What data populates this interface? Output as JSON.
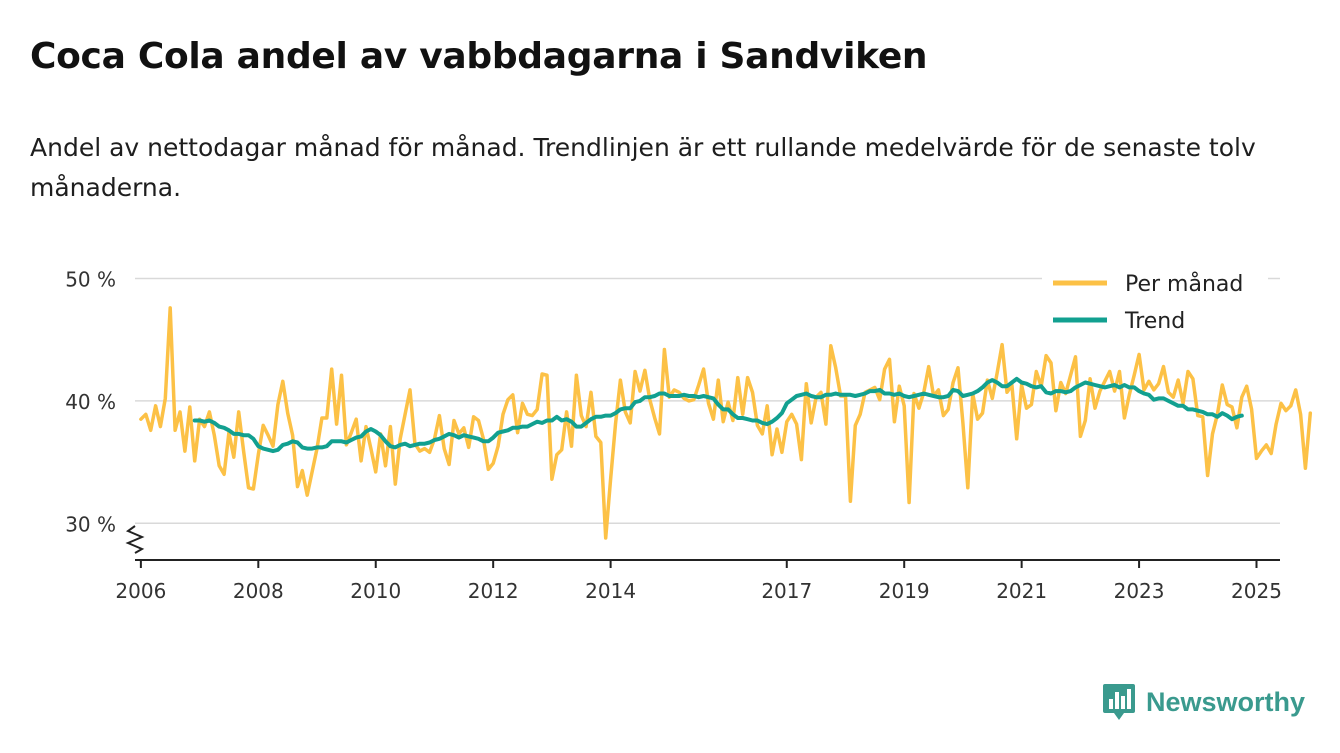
{
  "header": {
    "title": "Coca Cola andel av vabbdagarna i Sandviken"
  },
  "brand": {
    "name": "Newsworthy"
  },
  "colors": {
    "monthly": "#fcc146",
    "trend": "#12a090",
    "grid": "#d9d9d9",
    "axis": "#222222",
    "text": "#333333"
  },
  "chart_data": {
    "type": "line",
    "title": "Coca Cola andel av vabbdagarna i Sandviken",
    "subtitle": "Andel av nettodagar månad för månad. Trendlinjen är ett rullande medelvärde för de senaste tolv månaderna.",
    "xlabel": "",
    "ylabel": "",
    "x_range": [
      2005.9,
      2025.4
    ],
    "ylim": [
      27,
      52
    ],
    "y_ticks": [
      30,
      40,
      50
    ],
    "y_tick_labels": [
      "30 %",
      "40 %",
      "50 %"
    ],
    "x_ticks": [
      2006,
      2008,
      2010,
      2012,
      2014,
      2017,
      2019,
      2021,
      2023,
      2025
    ],
    "x_tick_labels": [
      "2006",
      "2008",
      "2010",
      "2012",
      "2014",
      "2017",
      "2019",
      "2021",
      "2023",
      "2025"
    ],
    "legend": {
      "position": "top-right",
      "entries": [
        "Per månad",
        "Trend"
      ]
    },
    "series": [
      {
        "name": "Per månad",
        "start": [
          2006,
          1
        ],
        "values": [
          38.5,
          38.9,
          37.6,
          39.6,
          37.9,
          40.2,
          47.6,
          37.6,
          39.1,
          35.9,
          39.5,
          35.1,
          38.5,
          37.9,
          39.1,
          37.2,
          34.7,
          34.0,
          37.4,
          35.4,
          39.1,
          35.9,
          32.9,
          32.8,
          35.6,
          38.0,
          37.2,
          36.3,
          39.7,
          41.6,
          39.0,
          37.2,
          33.0,
          34.3,
          32.3,
          34.2,
          36.1,
          38.6,
          38.6,
          42.6,
          38.1,
          42.1,
          36.4,
          37.4,
          38.5,
          35.1,
          37.9,
          36.1,
          34.2,
          37.3,
          34.7,
          37.9,
          33.2,
          36.9,
          38.9,
          40.9,
          36.5,
          35.9,
          36.1,
          35.8,
          36.9,
          38.8,
          36.1,
          34.8,
          38.4,
          37.3,
          37.8,
          36.2,
          38.7,
          38.4,
          36.9,
          34.4,
          34.9,
          36.3,
          38.9,
          40.1,
          40.5,
          37.4,
          39.8,
          38.9,
          38.8,
          39.3,
          42.2,
          42.1,
          33.6,
          35.6,
          36.0,
          39.1,
          36.3,
          42.1,
          38.8,
          37.9,
          40.7,
          37.1,
          36.6,
          28.8,
          33.6,
          38.1,
          41.7,
          39.1,
          38.2,
          42.4,
          40.8,
          42.5,
          40.1,
          38.6,
          37.3,
          44.2,
          40.3,
          40.9,
          40.7,
          40.2,
          40.0,
          40.1,
          41.3,
          42.6,
          39.8,
          38.5,
          41.7,
          38.3,
          39.9,
          38.4,
          41.9,
          38.9,
          41.9,
          40.7,
          38.0,
          37.3,
          39.6,
          35.6,
          37.7,
          35.8,
          38.3,
          38.9,
          38.1,
          35.2,
          41.4,
          38.2,
          40.3,
          40.7,
          38.1,
          44.5,
          42.7,
          40.4,
          40.4,
          31.8,
          38.0,
          38.9,
          40.7,
          40.9,
          41.1,
          40.1,
          42.6,
          43.4,
          38.3,
          41.2,
          39.6,
          31.7,
          40.6,
          39.4,
          40.7,
          42.8,
          40.4,
          40.9,
          38.8,
          39.3,
          41.5,
          42.7,
          38.2,
          32.9,
          40.6,
          38.5,
          39.0,
          41.7,
          40.2,
          42.3,
          44.6,
          40.7,
          41.3,
          36.9,
          41.3,
          39.4,
          39.7,
          42.4,
          41.2,
          43.7,
          43.1,
          39.2,
          41.5,
          40.6,
          42.1,
          43.6,
          37.1,
          38.4,
          41.8,
          39.4,
          40.8,
          41.6,
          42.4,
          40.8,
          42.4,
          38.6,
          40.5,
          42.1,
          43.8,
          40.9,
          41.6,
          40.9,
          41.4,
          42.8,
          40.7,
          40.3,
          41.7,
          39.8,
          42.4,
          41.8,
          38.8,
          38.7,
          33.9,
          37.3,
          38.9,
          41.3,
          39.7,
          39.5,
          37.8,
          40.3,
          41.2,
          39.3,
          35.3,
          35.9,
          36.4,
          35.7,
          38.1,
          39.8,
          39.2,
          39.6,
          40.9,
          38.9,
          34.5,
          39.0
        ]
      },
      {
        "name": "Trend",
        "start": [
          2006,
          12
        ],
        "values": [
          38.4,
          38.4,
          38.3,
          38.4,
          38.2,
          37.9,
          37.8,
          37.6,
          37.3,
          37.3,
          37.2,
          37.2,
          36.9,
          36.3,
          36.1,
          36.0,
          35.9,
          36.0,
          36.4,
          36.5,
          36.7,
          36.6,
          36.2,
          36.1,
          36.1,
          36.2,
          36.2,
          36.3,
          36.7,
          36.7,
          36.7,
          36.6,
          36.8,
          37.0,
          37.1,
          37.5,
          37.7,
          37.5,
          37.2,
          36.7,
          36.3,
          36.2,
          36.4,
          36.5,
          36.3,
          36.4,
          36.5,
          36.5,
          36.6,
          36.8,
          36.9,
          37.1,
          37.3,
          37.2,
          37.0,
          37.2,
          37.1,
          37.0,
          36.9,
          36.7,
          36.7,
          37.0,
          37.4,
          37.5,
          37.6,
          37.8,
          37.8,
          37.9,
          37.9,
          38.1,
          38.3,
          38.2,
          38.4,
          38.4,
          38.7,
          38.4,
          38.5,
          38.3,
          37.9,
          37.9,
          38.2,
          38.5,
          38.7,
          38.7,
          38.8,
          38.8,
          39.0,
          39.3,
          39.4,
          39.4,
          39.9,
          40.0,
          40.3,
          40.3,
          40.4,
          40.6,
          40.6,
          40.4,
          40.4,
          40.4,
          40.5,
          40.4,
          40.4,
          40.3,
          40.4,
          40.3,
          40.2,
          39.7,
          39.3,
          39.3,
          38.9,
          38.6,
          38.6,
          38.5,
          38.4,
          38.4,
          38.2,
          38.1,
          38.3,
          38.6,
          39.0,
          39.8,
          40.1,
          40.4,
          40.5,
          40.6,
          40.4,
          40.3,
          40.3,
          40.5,
          40.5,
          40.6,
          40.5,
          40.5,
          40.5,
          40.4,
          40.5,
          40.6,
          40.8,
          40.8,
          40.9,
          40.6,
          40.6,
          40.5,
          40.6,
          40.4,
          40.3,
          40.4,
          40.5,
          40.6,
          40.5,
          40.4,
          40.3,
          40.3,
          40.4,
          40.9,
          40.8,
          40.4,
          40.5,
          40.6,
          40.8,
          41.1,
          41.5,
          41.7,
          41.5,
          41.2,
          41.2,
          41.5,
          41.8,
          41.5,
          41.4,
          41.2,
          41.1,
          41.2,
          40.7,
          40.6,
          40.8,
          40.8,
          40.7,
          40.8,
          41.1,
          41.3,
          41.5,
          41.4,
          41.3,
          41.2,
          41.1,
          41.2,
          41.3,
          41.1,
          41.3,
          41.1,
          41.1,
          40.8,
          40.6,
          40.5,
          40.1,
          40.2,
          40.2,
          40.0,
          39.8,
          39.6,
          39.6,
          39.3,
          39.3,
          39.2,
          39.1,
          38.9,
          38.9,
          38.7,
          39.0,
          38.8,
          38.5,
          38.7,
          38.8
        ]
      }
    ]
  }
}
